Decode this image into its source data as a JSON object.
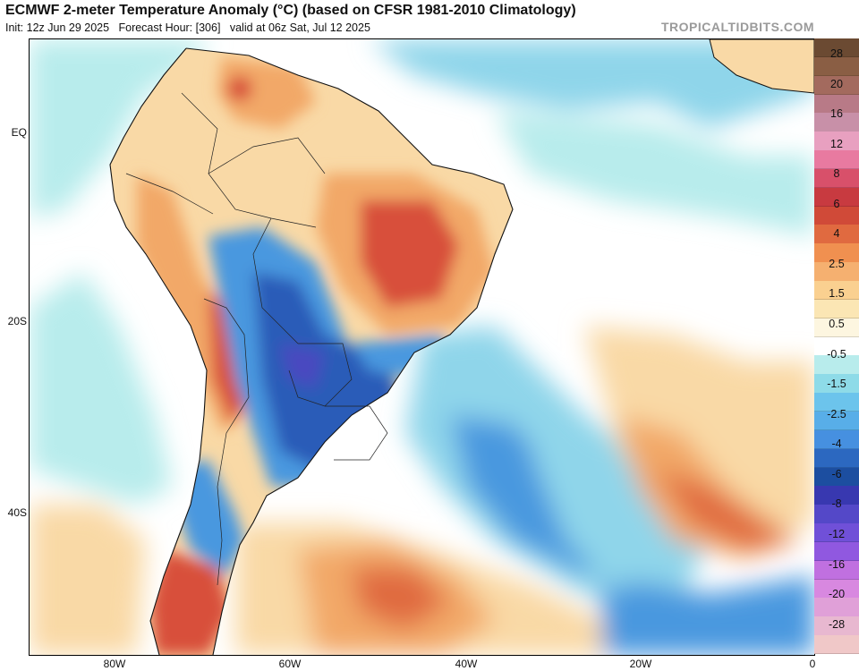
{
  "header": {
    "title": "ECMWF 2-meter Temperature Anomaly (°C) (based on CFSR 1981-2010 Climatology)",
    "init": "Init: 12z Jun 29 2025",
    "forecast_hour": "Forecast Hour: [306]",
    "valid": "valid at 06z Sat, Jul 12 2025",
    "brand": "TROPICALTIDBITS.COM"
  },
  "axes": {
    "lat_labels": [
      "EQ",
      "20S",
      "40S"
    ],
    "lon_labels": [
      "80W",
      "60W",
      "40W",
      "20W",
      "0"
    ]
  },
  "colorbar": {
    "colors": [
      "#6b4a32",
      "#8a5e44",
      "#a36a5e",
      "#b87a87",
      "#c890a8",
      "#e8a0c0",
      "#e87aa0",
      "#d8506a",
      "#c83a40",
      "#d04a38",
      "#e06a40",
      "#f09050",
      "#f5b070",
      "#fad090",
      "#fbe6b4",
      "#fdf6e0",
      "#ffffff",
      "#b8ecec",
      "#8edbe8",
      "#6cc4ec",
      "#58aee8",
      "#4690e0",
      "#2c68c0",
      "#1c4ea0",
      "#3838b0",
      "#5448c8",
      "#7050d8",
      "#9058e0",
      "#c070e0",
      "#d888e0",
      "#e0a0d8",
      "#e8b8d0",
      "#f0c8c8"
    ],
    "labels": [
      "28",
      "20",
      "16",
      "12",
      "8",
      "6",
      "4",
      "2.5",
      "1.5",
      "0.5",
      "-0.5",
      "-1.5",
      "-2.5",
      "-4",
      "-6",
      "-8",
      "-12",
      "-16",
      "-20",
      "-28"
    ]
  },
  "palette": {
    "ocean": "#ffffff",
    "strong_warm": "#d8503a",
    "warm": "#f2a868",
    "mild_warm": "#f9d9a6",
    "cool": "#8fd5ea",
    "cold": "#4a98df",
    "strong_cold": "#2a5cb8",
    "very_cold": "#4a48c0",
    "border": "#111111"
  }
}
